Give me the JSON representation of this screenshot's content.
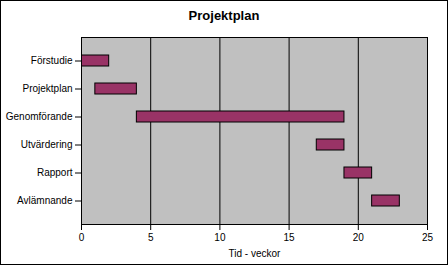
{
  "chart_data": {
    "type": "gantt",
    "title": "Projektplan",
    "orientation": "horizontal",
    "categories": [
      "Förstudie",
      "Projektplan",
      "Genomförande",
      "Utvärdering",
      "Rapport",
      "Avlämnande"
    ],
    "start": [
      0,
      1,
      4,
      17,
      19,
      21
    ],
    "end": [
      2,
      4,
      19,
      19,
      21,
      23
    ],
    "color": "#993366",
    "xlabel": "Tid - veckor",
    "xlim": [
      0,
      25
    ],
    "xticks": [
      0,
      5,
      10,
      15,
      20,
      25
    ],
    "grid": true
  }
}
